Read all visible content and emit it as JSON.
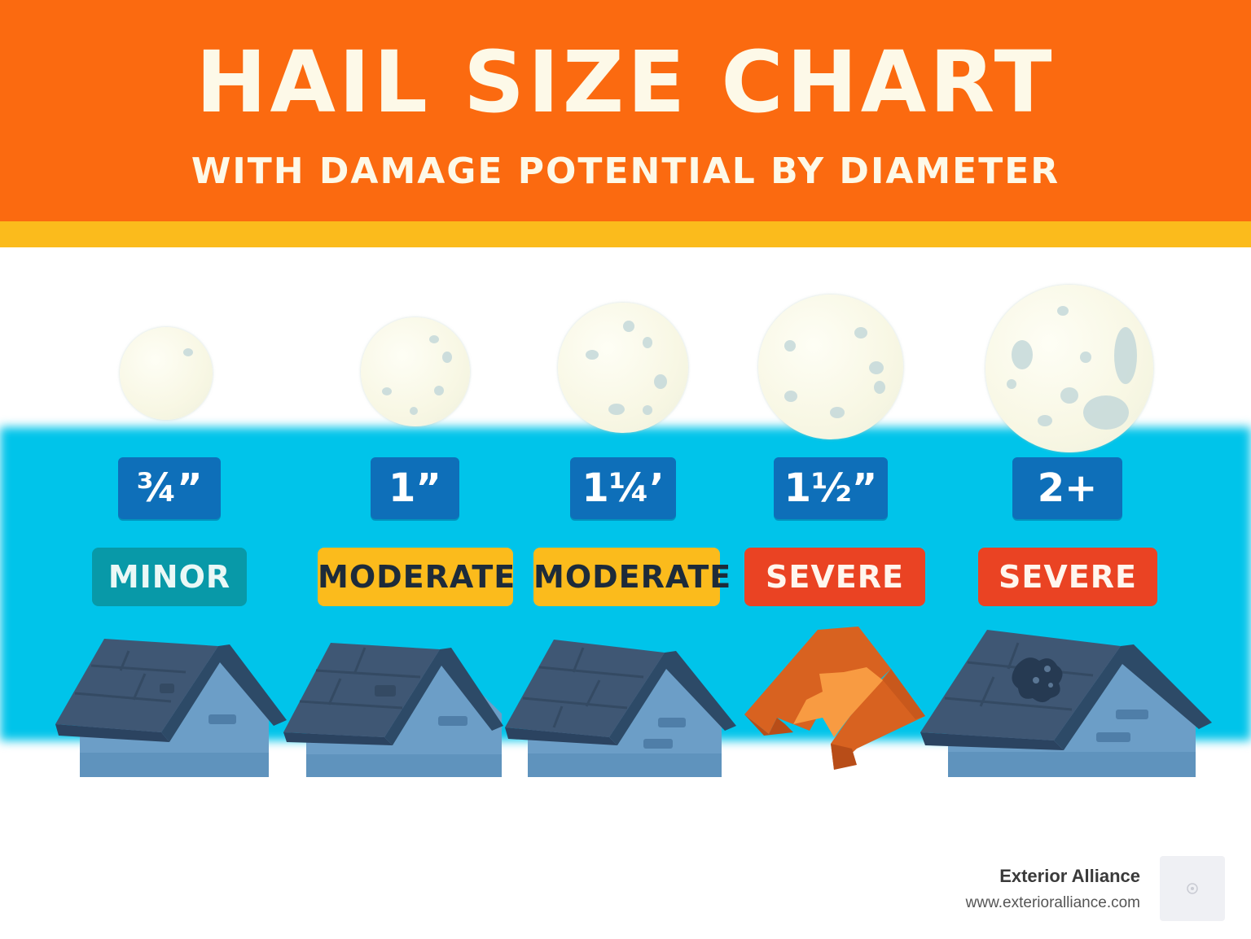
{
  "header": {
    "title": "HAIL SIZE CHART",
    "subtitle": "WITH DAMAGE POTENTIAL BY DIAMETER"
  },
  "sizes": [
    {
      "size": "¾”",
      "damage": "MINOR"
    },
    {
      "size": "1”",
      "damage": "MODERATE"
    },
    {
      "size": "1¼’",
      "damage": "MODERATE"
    },
    {
      "size": "1½”",
      "damage": "SEVERE"
    },
    {
      "size": "2+",
      "damage": "SEVERE"
    }
  ],
  "footer": {
    "brand": "Exterior Alliance",
    "url": "www.exterioralliance.com"
  },
  "colors": {
    "header_orange": "#fb6a10",
    "stripe_yellow": "#fbbb1c",
    "band_cyan": "#00c4ea",
    "size_badge_blue": "#0e6fb9",
    "minor_teal": "#0899a8",
    "moderate_yellow": "#fbbb1c",
    "severe_red": "#ea4323"
  }
}
